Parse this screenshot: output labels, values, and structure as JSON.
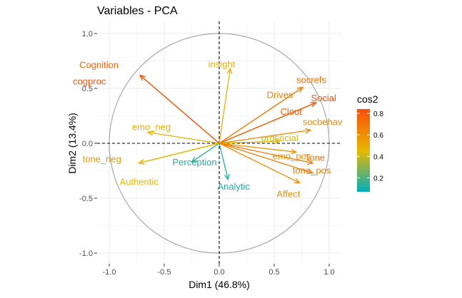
{
  "chart_data": {
    "type": "scatter",
    "title": "Variables - PCA",
    "xlabel": "Dim1 (46.8%)",
    "ylabel": "Dim2 (13.4%)",
    "xlim": [
      -1.0,
      1.0
    ],
    "ylim": [
      -1.0,
      1.0
    ],
    "x_ticks": [
      "-1.0",
      "-0.5",
      "0.0",
      "0.5",
      "1.0"
    ],
    "y_ticks": [
      "-1.0",
      "-0.5",
      "0.0",
      "0.5",
      "1.0"
    ],
    "grid": true,
    "unit_circle": true,
    "legend": {
      "title": "cos2",
      "position": "right",
      "ticks": [
        "0.8",
        "0.6",
        "0.4",
        "0.2"
      ],
      "tick_values": [
        0.8,
        0.6,
        0.4,
        0.2
      ],
      "range": [
        0.07,
        0.84
      ],
      "color_stops": [
        {
          "value": 0.07,
          "color": "#00AFBB"
        },
        {
          "value": 0.45,
          "color": "#E7B800"
        },
        {
          "value": 0.84,
          "color": "#FC4E07"
        }
      ]
    },
    "variables": [
      {
        "name": "Cognition",
        "x": -0.72,
        "y": 0.62,
        "cos2": 0.75
      },
      {
        "name": "cogproc",
        "x": -0.72,
        "y": 0.62,
        "cos2": 0.82
      },
      {
        "name": "insight",
        "x": 0.1,
        "y": 0.68,
        "cos2": 0.47
      },
      {
        "name": "socrefs",
        "x": 0.76,
        "y": 0.51,
        "cos2": 0.72
      },
      {
        "name": "Drives",
        "x": 0.76,
        "y": 0.51,
        "cos2": 0.65
      },
      {
        "name": "Social",
        "x": 0.88,
        "y": 0.37,
        "cos2": 0.84
      },
      {
        "name": "Clout",
        "x": 0.88,
        "y": 0.37,
        "cos2": 0.78
      },
      {
        "name": "socbehav",
        "x": 0.83,
        "y": 0.12,
        "cos2": 0.62
      },
      {
        "name": "emo_neg",
        "x": -0.65,
        "y": 0.1,
        "cos2": 0.48
      },
      {
        "name": "prosocial",
        "x": 0.55,
        "y": 0.02,
        "cos2": 0.43
      },
      {
        "name": "emo_pos",
        "x": 0.7,
        "y": -0.08,
        "cos2": 0.58
      },
      {
        "name": "Tone",
        "x": 0.85,
        "y": -0.18,
        "cos2": 0.7
      },
      {
        "name": "tone_pos",
        "x": 0.85,
        "y": -0.27,
        "cos2": 0.66
      },
      {
        "name": "Affect",
        "x": 0.73,
        "y": -0.36,
        "cos2": 0.6
      },
      {
        "name": "tone_neg",
        "x": -0.73,
        "y": -0.18,
        "cos2": 0.55
      },
      {
        "name": "Authentic",
        "x": -0.73,
        "y": -0.18,
        "cos2": 0.45
      },
      {
        "name": "Perception",
        "x": -0.25,
        "y": -0.17,
        "cos2": 0.13
      },
      {
        "name": "Analytic",
        "x": 0.08,
        "y": -0.33,
        "cos2": 0.12
      }
    ]
  }
}
